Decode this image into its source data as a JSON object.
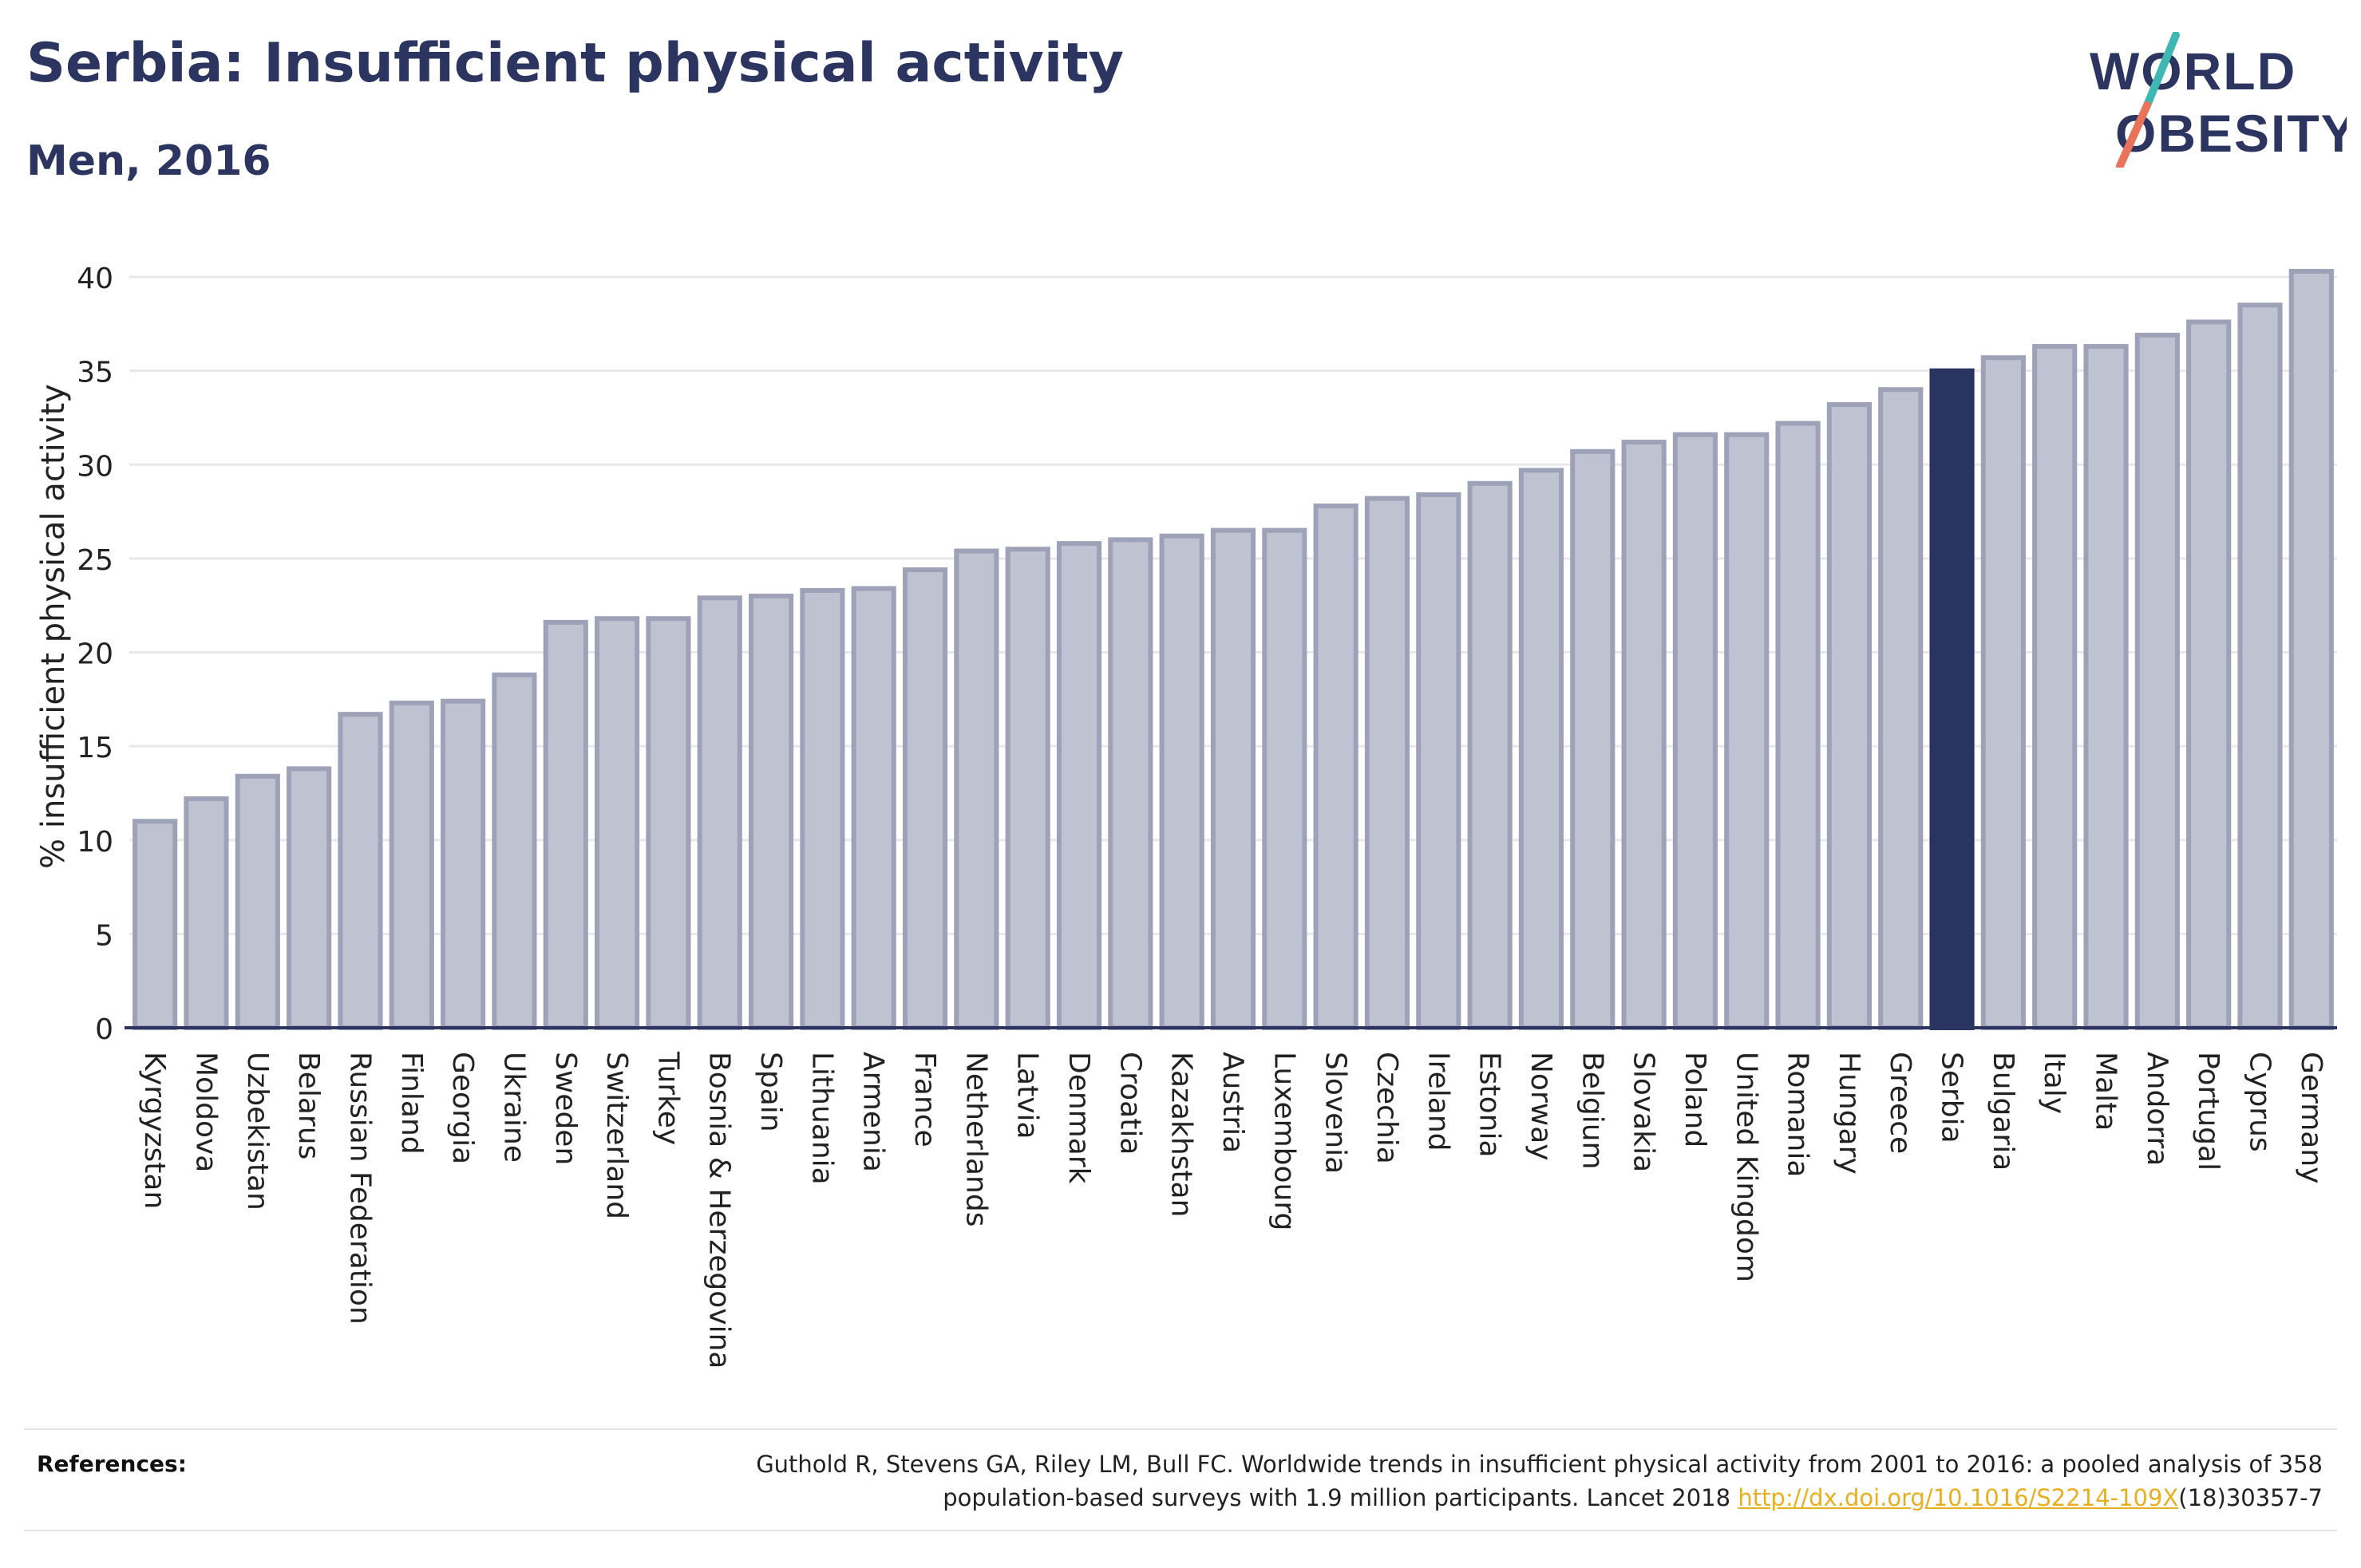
{
  "header": {
    "title": "Serbia: Insufficient physical activity",
    "subtitle": "Men, 2016"
  },
  "logo": {
    "line1": "WORLD",
    "line2": "OBESITY",
    "text_color": "#2c3560",
    "slash_colors": [
      "#3fb8b4",
      "#e8735a"
    ]
  },
  "chart_data": {
    "type": "bar",
    "ylabel": "% insufficient physical activity",
    "xlabel": "",
    "ylim": [
      0,
      42
    ],
    "yticks": [
      0,
      5,
      10,
      15,
      20,
      25,
      30,
      35,
      40
    ],
    "grid": true,
    "highlight": "Serbia",
    "colors": {
      "bar_fill": "#bfc2d0",
      "bar_stroke": "#9ea2b8",
      "highlight": "#2a3460"
    },
    "categories": [
      "Kyrgyzstan",
      "Moldova",
      "Uzbekistan",
      "Belarus",
      "Russian Federation",
      "Finland",
      "Georgia",
      "Ukraine",
      "Sweden",
      "Switzerland",
      "Turkey",
      "Bosnia & Herzegovina",
      "Spain",
      "Lithuania",
      "Armenia",
      "France",
      "Netherlands",
      "Latvia",
      "Denmark",
      "Croatia",
      "Kazakhstan",
      "Austria",
      "Luxembourg",
      "Slovenia",
      "Czechia",
      "Ireland",
      "Estonia",
      "Norway",
      "Belgium",
      "Slovakia",
      "Poland",
      "United Kingdom",
      "Romania",
      "Hungary",
      "Greece",
      "Serbia",
      "Bulgaria",
      "Italy",
      "Malta",
      "Andorra",
      "Portugal",
      "Cyprus",
      "Germany"
    ],
    "values": [
      11.0,
      12.2,
      13.4,
      13.8,
      16.7,
      17.3,
      17.4,
      18.8,
      21.6,
      21.8,
      21.8,
      22.9,
      23.0,
      23.3,
      23.4,
      24.4,
      25.4,
      25.5,
      25.8,
      26.0,
      26.2,
      26.5,
      26.5,
      27.8,
      28.2,
      28.4,
      29.0,
      29.7,
      30.7,
      31.2,
      31.6,
      31.6,
      32.2,
      33.2,
      34.0,
      35.0,
      35.7,
      36.3,
      36.3,
      36.9,
      37.6,
      38.5,
      40.3
    ]
  },
  "references": {
    "label": "References:",
    "text_line1": "Guthold R, Stevens GA, Riley LM, Bull FC. Worldwide trends in insufficient physical activity from 2001 to 2016: a pooled analysis of 358",
    "text_line2_prefix": "population-based surveys with 1.9 million participants. Lancet 2018 ",
    "link": "http://dx.doi.org/10.1016/S2214-109X",
    "text_line2_suffix": "(18)30357-7"
  }
}
